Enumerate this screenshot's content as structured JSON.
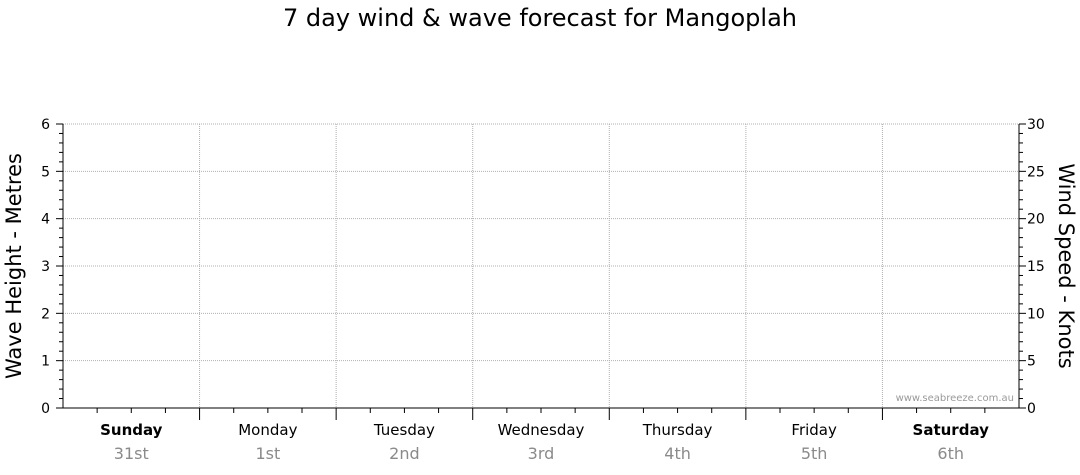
{
  "title": "7 day wind & wave forecast for Mangoplah",
  "watermark": "www.seabreeze.com.au",
  "chart_data": {
    "type": "line",
    "title": "7 day wind & wave forecast for Mangoplah",
    "ylabel_left": "Wave Height - Metres",
    "ylabel_right": "Wind Speed - Knots",
    "ylim_left": [
      0,
      6
    ],
    "ylim_right": [
      0,
      30
    ],
    "yticks_left": [
      0,
      1,
      2,
      3,
      4,
      5,
      6
    ],
    "yticks_right": [
      0,
      5,
      10,
      15,
      20,
      25,
      30
    ],
    "grid": true,
    "days": [
      {
        "name": "Sunday",
        "date": "31st",
        "bold": true
      },
      {
        "name": "Monday",
        "date": "1st",
        "bold": false
      },
      {
        "name": "Tuesday",
        "date": "2nd",
        "bold": false
      },
      {
        "name": "Wednesday",
        "date": "3rd",
        "bold": false
      },
      {
        "name": "Thursday",
        "date": "4th",
        "bold": false
      },
      {
        "name": "Friday",
        "date": "5th",
        "bold": false
      },
      {
        "name": "Saturday",
        "date": "6th",
        "bold": true
      }
    ],
    "series": []
  }
}
